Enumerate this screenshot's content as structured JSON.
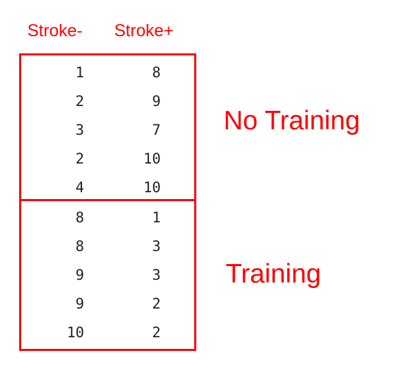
{
  "headers": {
    "left": "Stroke-",
    "right": "Stroke+"
  },
  "groups": [
    {
      "label": "No Training",
      "rows": [
        {
          "stroke_minus": "1",
          "stroke_plus": "8"
        },
        {
          "stroke_minus": "2",
          "stroke_plus": "9"
        },
        {
          "stroke_minus": "3",
          "stroke_plus": "7"
        },
        {
          "stroke_minus": "2",
          "stroke_plus": "10"
        },
        {
          "stroke_minus": "4",
          "stroke_plus": "10"
        }
      ]
    },
    {
      "label": "Training",
      "rows": [
        {
          "stroke_minus": "8",
          "stroke_plus": "1"
        },
        {
          "stroke_minus": "8",
          "stroke_plus": "3"
        },
        {
          "stroke_minus": "9",
          "stroke_plus": "3"
        },
        {
          "stroke_minus": "9",
          "stroke_plus": "2"
        },
        {
          "stroke_minus": "10",
          "stroke_plus": "2"
        }
      ]
    }
  ],
  "colors": {
    "accent": "#ff0000",
    "text": "#222222"
  }
}
